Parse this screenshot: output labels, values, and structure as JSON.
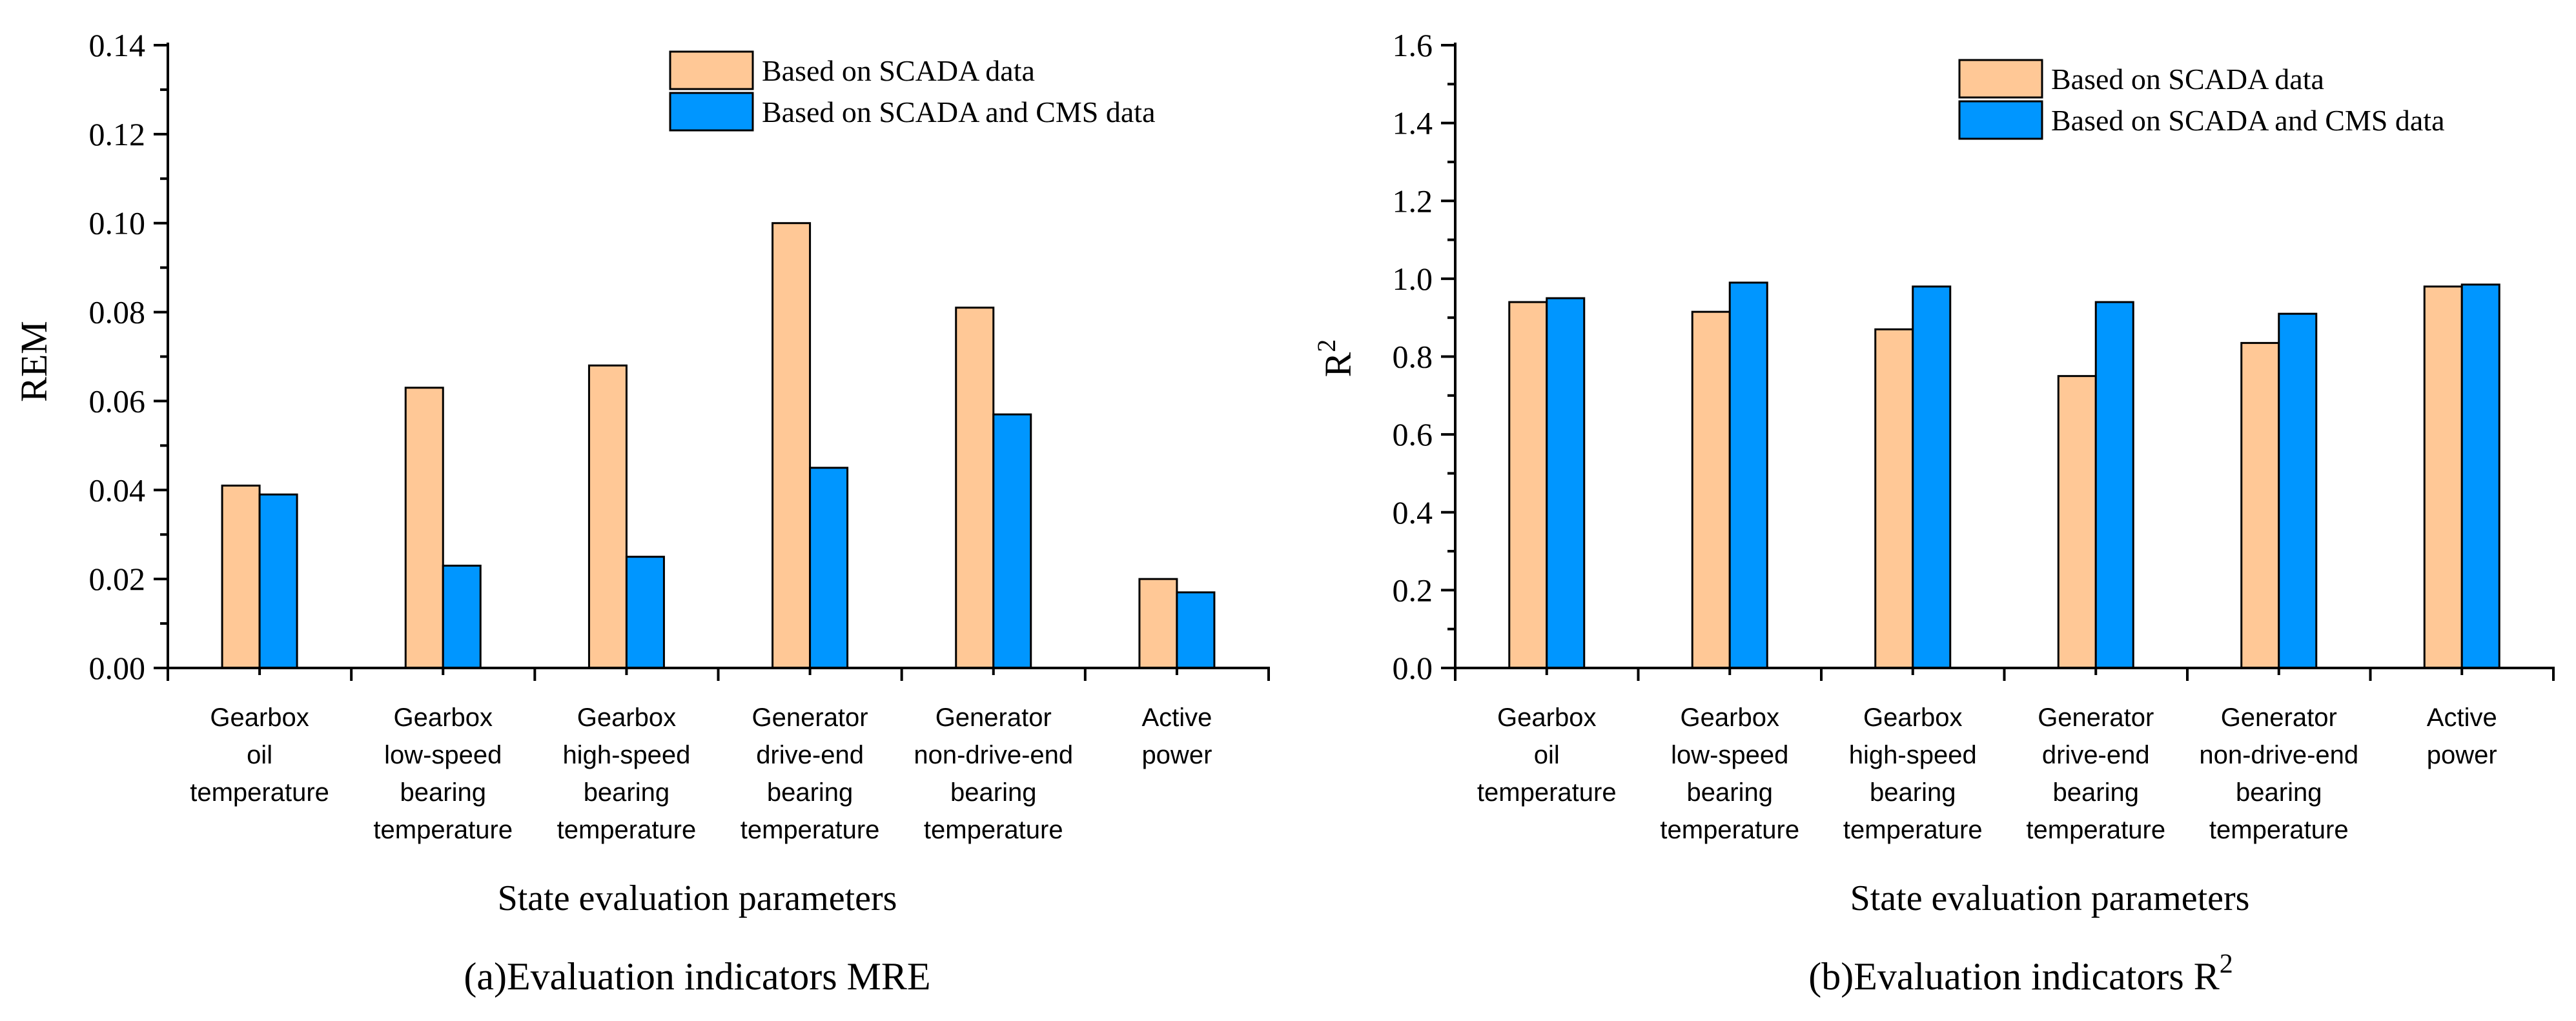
{
  "colors": {
    "series_1": "#FFC896",
    "series_2": "#0096FF",
    "axis": "#000000",
    "background": "#FFFFFF"
  },
  "chart_data": [
    {
      "type": "bar",
      "caption": "(a)Evaluation indicators MRE",
      "xlabel": "State evaluation parameters",
      "ylabel": "REM",
      "ylim": [
        0,
        0.14
      ],
      "y_ticks": [
        "0.00",
        "0.02",
        "0.04",
        "0.06",
        "0.08",
        "0.10",
        "0.12",
        "0.14"
      ],
      "categories": [
        [
          "Gearbox",
          "oil",
          "temperature"
        ],
        [
          "Gearbox",
          "low-speed",
          "bearing",
          "temperature"
        ],
        [
          "Gearbox",
          "high-speed",
          "bearing",
          "temperature"
        ],
        [
          "Generator",
          "drive-end",
          "bearing",
          "temperature"
        ],
        [
          "Generator",
          "non-drive-end",
          "bearing",
          "temperature"
        ],
        [
          "Active",
          "power"
        ]
      ],
      "series": [
        {
          "name": "Based on SCADA data",
          "values": [
            0.041,
            0.063,
            0.068,
            0.1,
            0.081,
            0.02
          ]
        },
        {
          "name": "Based on SCADA and CMS data",
          "values": [
            0.039,
            0.023,
            0.025,
            0.045,
            0.057,
            0.017
          ]
        }
      ],
      "legend": "top-right",
      "grid": false
    },
    {
      "type": "bar",
      "caption": "(b)Evaluation indicators R",
      "caption_sup": "2",
      "xlabel": "State evaluation parameters",
      "ylabel": "R",
      "ylabel_sup": "2",
      "ylim": [
        0,
        1.6
      ],
      "y_ticks": [
        "0.0",
        "0.2",
        "0.4",
        "0.6",
        "0.8",
        "1.0",
        "1.2",
        "1.4",
        "1.6"
      ],
      "categories": [
        [
          "Gearbox",
          "oil",
          "temperature"
        ],
        [
          "Gearbox",
          "low-speed",
          "bearing",
          "temperature"
        ],
        [
          "Gearbox",
          "high-speed",
          "bearing",
          "temperature"
        ],
        [
          "Generator",
          "drive-end",
          "bearing",
          "temperature"
        ],
        [
          "Generator",
          "non-drive-end",
          "bearing",
          "temperature"
        ],
        [
          "Active",
          "power"
        ]
      ],
      "series": [
        {
          "name": "Based on SCADA data",
          "values": [
            0.94,
            0.915,
            0.87,
            0.75,
            0.835,
            0.98
          ]
        },
        {
          "name": "Based on SCADA and CMS data",
          "values": [
            0.95,
            0.99,
            0.98,
            0.94,
            0.91,
            0.985
          ]
        }
      ],
      "legend": "top-right",
      "grid": false
    }
  ]
}
